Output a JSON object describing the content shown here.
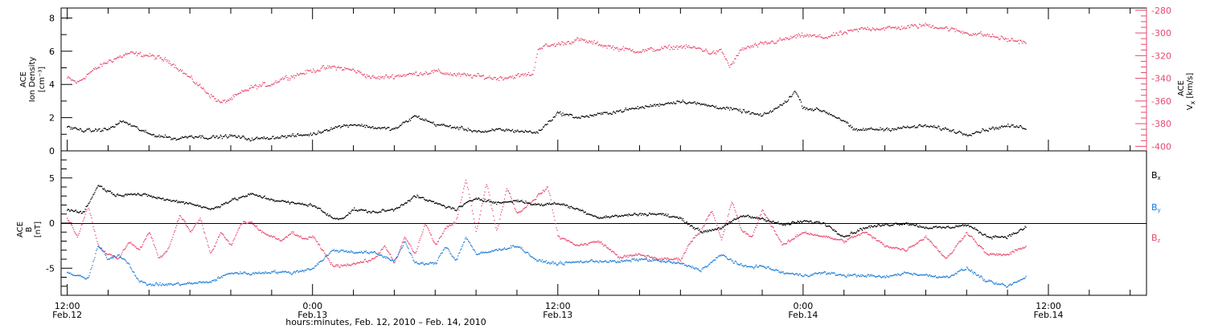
{
  "chart_data": [
    {
      "type": "scatter",
      "panel": "top",
      "ylabel_left": [
        "ACE",
        "Ion Density",
        "[cm⁻³]"
      ],
      "ylabel_right": [
        "ACE",
        "V",
        "x",
        "[km/s]"
      ],
      "ylim_left": [
        0,
        8.6
      ],
      "yticks_left": [
        0,
        2,
        4,
        6,
        8
      ],
      "ylim_right": [
        -404,
        -278
      ],
      "yticks_right": [
        -400,
        -380,
        -360,
        -340,
        -320,
        -300,
        -280
      ],
      "colors": {
        "density": "#000000",
        "velocity": "#e8486e"
      },
      "series": [
        {
          "axis": "left",
          "color_key": "density",
          "x_hours": [
            0,
            1,
            2,
            2.7,
            3,
            4,
            5,
            5.3,
            6,
            7,
            8,
            9,
            10,
            11,
            12,
            13,
            14,
            15,
            16,
            17,
            18,
            19,
            20,
            20.5,
            21,
            22,
            23,
            24,
            25,
            26,
            27,
            28,
            29,
            30,
            31,
            32,
            33,
            34,
            35,
            35.6,
            36,
            37,
            38,
            38.5,
            39,
            40,
            41,
            42,
            43,
            44,
            45,
            46,
            46.9
          ],
          "values": [
            1.4,
            1.2,
            1.3,
            1.8,
            1.6,
            1.0,
            0.8,
            0.7,
            0.9,
            0.8,
            0.9,
            0.7,
            0.8,
            0.9,
            1.0,
            1.4,
            1.6,
            1.4,
            1.3,
            2.1,
            1.6,
            1.4,
            1.2,
            1.1,
            1.3,
            1.2,
            1.1,
            2.3,
            2.0,
            2.2,
            2.4,
            2.6,
            2.8,
            3.0,
            2.8,
            2.6,
            2.4,
            2.1,
            2.8,
            3.6,
            2.6,
            2.4,
            1.8,
            1.2,
            1.3,
            1.3,
            1.4,
            1.5,
            1.3,
            1.0,
            1.3,
            1.5,
            1.4
          ]
        },
        {
          "axis": "right",
          "color_key": "velocity",
          "x_hours": [
            0,
            0.5,
            1,
            2,
            3,
            4,
            5,
            6,
            7,
            7.5,
            8,
            9,
            10,
            10.5,
            11,
            12,
            13,
            14,
            15,
            16,
            17,
            18,
            19,
            20,
            21,
            22,
            22.8,
            23,
            24,
            25,
            26,
            27,
            28,
            29,
            30,
            31,
            31.5,
            32,
            32.4,
            33,
            34,
            35,
            36,
            37,
            38,
            39,
            40,
            41,
            42,
            43,
            44,
            45,
            46,
            46.9
          ],
          "values": [
            -340,
            -344,
            -336,
            -325,
            -318,
            -320,
            -325,
            -340,
            -355,
            -362,
            -358,
            -348,
            -345,
            -340,
            -338,
            -333,
            -330,
            -333,
            -340,
            -338,
            -336,
            -334,
            -337,
            -338,
            -340,
            -338,
            -336,
            -313,
            -310,
            -306,
            -310,
            -314,
            -316,
            -314,
            -312,
            -314,
            -318,
            -316,
            -330,
            -314,
            -310,
            -306,
            -302,
            -304,
            -300,
            -296,
            -296,
            -295,
            -293,
            -296,
            -300,
            -302,
            -306,
            -308
          ]
        }
      ]
    },
    {
      "type": "scatter",
      "panel": "bottom",
      "ylabel_left": [
        "ACE",
        "B",
        "[nT]"
      ],
      "ylim": [
        -8,
        8
      ],
      "yticks": [
        -5,
        0,
        5
      ],
      "legend_position": "right",
      "colors": {
        "Bx": "#000000",
        "By": "#1c7cd6",
        "Bz": "#e8486e"
      },
      "series": [
        {
          "name": "B",
          "subscript": "x",
          "color_key": "Bx",
          "x_hours": [
            0,
            0.8,
            1.5,
            2,
            2.5,
            3,
            4,
            5,
            6,
            7,
            8,
            9,
            10,
            11,
            12,
            13,
            13.5,
            14,
            15,
            16,
            17,
            18,
            19,
            20,
            21,
            22,
            23,
            24,
            25,
            26,
            27,
            28,
            29,
            30,
            31,
            32,
            33,
            34,
            35,
            36,
            37,
            38,
            39,
            40,
            41,
            42,
            43,
            44,
            45,
            46,
            46.9
          ],
          "values": [
            1.5,
            1.2,
            4.2,
            3.5,
            3.0,
            3.3,
            3.0,
            2.5,
            2.2,
            1.5,
            2.5,
            3.2,
            2.6,
            2.2,
            2.0,
            0.5,
            0.6,
            1.5,
            1.2,
            1.5,
            3.0,
            2.2,
            1.5,
            2.8,
            2.2,
            2.5,
            2.0,
            2.2,
            1.5,
            0.6,
            0.8,
            1.0,
            1.0,
            0.5,
            -1.0,
            -0.5,
            0.8,
            0.5,
            -0.2,
            0.2,
            0.0,
            -1.5,
            -0.5,
            -0.2,
            0.0,
            -0.5,
            -0.5,
            -0.2,
            -1.5,
            -1.5,
            -0.5
          ]
        },
        {
          "name": "B",
          "subscript": "y",
          "color_key": "By",
          "x_hours": [
            0,
            1,
            1.5,
            2,
            2.5,
            3,
            3.5,
            4,
            5,
            6,
            7,
            8,
            9,
            10,
            11,
            12,
            13,
            14,
            15,
            16,
            16.5,
            17,
            18,
            18.5,
            19,
            19.5,
            20,
            21,
            22,
            23,
            24,
            25,
            26,
            27,
            28,
            29,
            30,
            31,
            32,
            33,
            34,
            35,
            36,
            37,
            38,
            39,
            40,
            41,
            42,
            43,
            44,
            45,
            46,
            46.9
          ],
          "values": [
            -5.5,
            -6.2,
            -2.5,
            -4.0,
            -3.5,
            -4.5,
            -6.5,
            -6.8,
            -6.8,
            -6.7,
            -6.5,
            -5.5,
            -5.6,
            -5.4,
            -5.5,
            -5.0,
            -3.0,
            -3.2,
            -3.3,
            -4.2,
            -2.0,
            -4.5,
            -4.5,
            -2.5,
            -4.2,
            -1.5,
            -3.5,
            -3.0,
            -2.5,
            -4.2,
            -4.5,
            -4.3,
            -4.2,
            -4.3,
            -4.0,
            -4.2,
            -4.5,
            -5.2,
            -3.5,
            -4.8,
            -4.8,
            -5.5,
            -5.8,
            -5.5,
            -5.8,
            -5.8,
            -6.0,
            -5.5,
            -5.8,
            -6.0,
            -5.0,
            -6.5,
            -7.0,
            -6.0
          ]
        },
        {
          "name": "B",
          "subscript": "z",
          "color_key": "Bz",
          "x_hours": [
            0,
            0.5,
            1,
            1.5,
            2,
            2.5,
            3,
            3.5,
            4,
            4.5,
            5,
            5.5,
            6,
            6.5,
            7,
            7.5,
            8,
            8.5,
            9,
            9.5,
            10,
            10.5,
            11,
            11.5,
            12,
            13,
            14,
            15,
            15.5,
            16,
            16.5,
            17,
            17.5,
            18,
            18.5,
            19,
            19.5,
            20,
            20.5,
            21,
            21.5,
            22,
            22.5,
            23,
            23.5,
            24,
            25,
            26,
            27,
            28,
            29,
            30,
            30.5,
            31,
            31.5,
            32,
            32.5,
            33,
            33.5,
            34,
            35,
            36,
            37,
            38,
            39,
            40,
            41,
            42,
            43,
            44,
            45,
            46,
            46.9
          ],
          "values": [
            0.5,
            -1.5,
            2.0,
            -2.5,
            -3.5,
            -4.0,
            -2.0,
            -3.0,
            -1.0,
            -4.0,
            -2.5,
            1.0,
            -1.0,
            0.5,
            -3.5,
            -1.0,
            -2.5,
            0.0,
            0.0,
            -1.0,
            -1.5,
            -2.0,
            -1.0,
            -1.8,
            -1.5,
            -4.8,
            -4.5,
            -4.0,
            -2.5,
            -4.5,
            -1.5,
            -3.5,
            0.0,
            -2.5,
            -0.5,
            0.0,
            5.0,
            -1.0,
            4.5,
            -1.0,
            4.0,
            1.0,
            2.0,
            3.0,
            4.0,
            -1.5,
            -2.5,
            -2.0,
            -3.8,
            -3.5,
            -4.0,
            -4.0,
            -2.0,
            -0.8,
            1.5,
            -2.0,
            2.5,
            -1.0,
            -1.5,
            1.5,
            -2.5,
            -1.0,
            -1.5,
            -2.0,
            -1.0,
            -2.5,
            -3.0,
            -1.5,
            -4.0,
            -1.0,
            -3.5,
            -3.5,
            -2.5
          ]
        }
      ]
    }
  ],
  "x_axis": {
    "xlim_hours": [
      -0.3,
      52.8
    ],
    "xlabel": "hours:minutes, Feb. 12, 2010 – Feb. 14, 2010",
    "ticks": [
      {
        "hour": 0,
        "time": "12:00",
        "date": "Feb.12"
      },
      {
        "hour": 12,
        "time": "0:00",
        "date": "Feb.13"
      },
      {
        "hour": 24,
        "time": "12:00",
        "date": "Feb.13"
      },
      {
        "hour": 36,
        "time": "0:00",
        "date": "Feb.14"
      },
      {
        "hour": 48,
        "time": "12:00",
        "date": "Feb.14"
      }
    ],
    "minor_step_hours": 2
  }
}
